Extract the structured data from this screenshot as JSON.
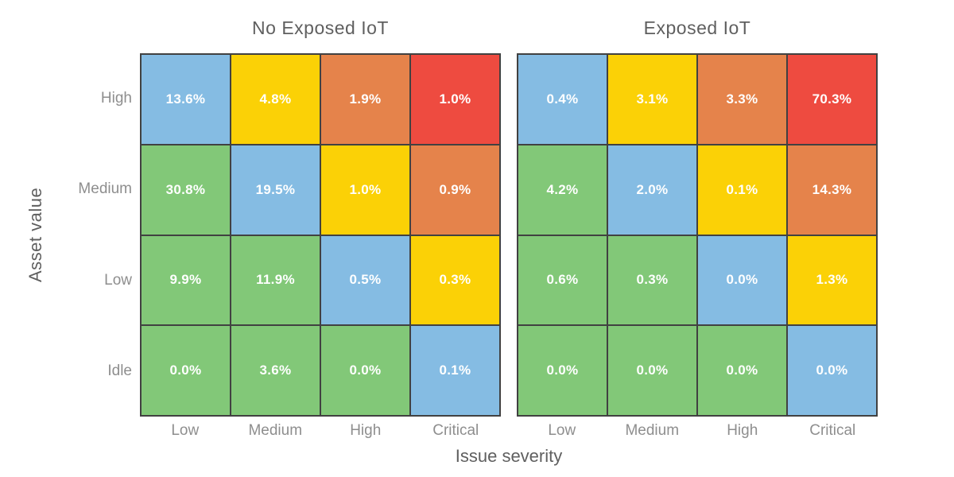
{
  "figure": {
    "x_axis_title": "Issue severity",
    "y_axis_title": "Asset value",
    "x_tick_labels": [
      "Low",
      "Medium",
      "High",
      "Critical"
    ],
    "y_tick_labels": [
      "High",
      "Medium",
      "Low",
      "Idle"
    ]
  },
  "palette": {
    "green": "#82C878",
    "blue": "#85BCE3",
    "yellow": "#FBD106",
    "orange": "#E5834B",
    "red": "#EE4B40",
    "grid_line": "#414141",
    "title_text": "#5F5F5F",
    "tick_text": "#8E8E8E",
    "cell_text": "#FFFFFF"
  },
  "chart_data": [
    {
      "type": "heatmap",
      "title": "No Exposed IoT",
      "xlabel": "Issue severity",
      "ylabel": "Asset value",
      "x_categories": [
        "Low",
        "Medium",
        "High",
        "Critical"
      ],
      "y_categories": [
        "High",
        "Medium",
        "Low",
        "Idle"
      ],
      "value_unit": "%",
      "values_percent": [
        [
          13.6,
          4.8,
          1.9,
          1.0
        ],
        [
          30.8,
          19.5,
          1.0,
          0.9
        ],
        [
          9.9,
          11.9,
          0.5,
          0.3
        ],
        [
          0.0,
          3.6,
          0.0,
          0.1
        ]
      ],
      "cell_colors": [
        [
          "blue",
          "yellow",
          "orange",
          "red"
        ],
        [
          "green",
          "blue",
          "yellow",
          "orange"
        ],
        [
          "green",
          "green",
          "blue",
          "yellow"
        ],
        [
          "green",
          "green",
          "green",
          "blue"
        ]
      ]
    },
    {
      "type": "heatmap",
      "title": "Exposed IoT",
      "xlabel": "Issue severity",
      "ylabel": "Asset value",
      "x_categories": [
        "Low",
        "Medium",
        "High",
        "Critical"
      ],
      "y_categories": [
        "High",
        "Medium",
        "Low",
        "Idle"
      ],
      "value_unit": "%",
      "values_percent": [
        [
          0.4,
          3.1,
          3.3,
          70.3
        ],
        [
          4.2,
          2.0,
          0.1,
          14.3
        ],
        [
          0.6,
          0.3,
          0.0,
          1.3
        ],
        [
          0.0,
          0.0,
          0.0,
          0.0
        ]
      ],
      "cell_colors": [
        [
          "blue",
          "yellow",
          "orange",
          "red"
        ],
        [
          "green",
          "blue",
          "yellow",
          "orange"
        ],
        [
          "green",
          "green",
          "blue",
          "yellow"
        ],
        [
          "green",
          "green",
          "green",
          "blue"
        ]
      ]
    }
  ]
}
